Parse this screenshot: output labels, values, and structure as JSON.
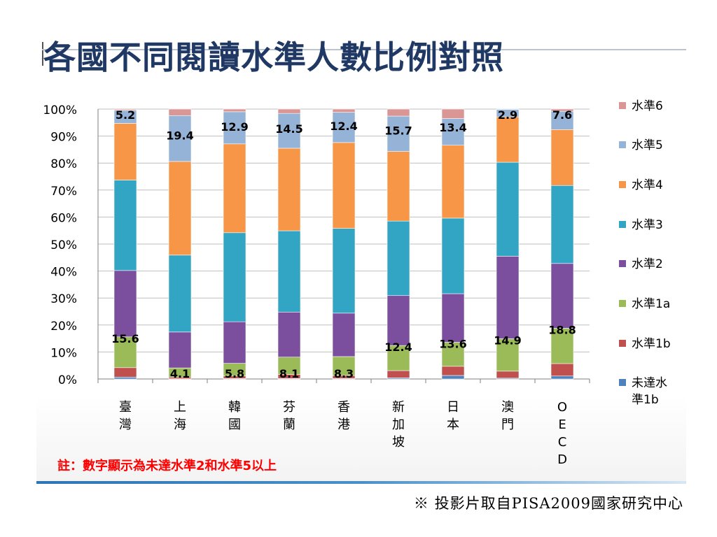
{
  "title": "各國不同閱讀水準人數比例對照",
  "note": "註：數字顯示為未達水準2和水準5以上",
  "source": "※ 投影片取自PISA2009國家研究中心",
  "colors": {
    "未達水準1b": "#4f81bd",
    "水準1b": "#c0504d",
    "水準1a": "#9bbb59",
    "水準2": "#7b4f9e",
    "水準3": "#31a5c3",
    "水準4": "#f79646",
    "水準5": "#95b3d7",
    "水準6": "#d99694"
  },
  "chart_data": {
    "type": "bar",
    "stacked": true,
    "ylim": [
      0,
      100
    ],
    "yticks": [
      "0%",
      "10%",
      "20%",
      "30%",
      "40%",
      "50%",
      "60%",
      "70%",
      "80%",
      "90%",
      "100%"
    ],
    "categories": [
      "臺灣",
      "上海",
      "韓國",
      "芬蘭",
      "香港",
      "新加坡",
      "日本",
      "澳門",
      "OECD"
    ],
    "series": [
      {
        "name": "未達水準1b",
        "values": [
          0.7,
          0.1,
          0.2,
          0.2,
          0.2,
          0.4,
          1.3,
          0.3,
          1.1
        ]
      },
      {
        "name": "水準1b",
        "values": [
          3.5,
          0.6,
          0.9,
          1.5,
          1.1,
          2.7,
          3.4,
          2.6,
          4.6
        ]
      },
      {
        "name": "水準1a",
        "values": [
          11.4,
          3.4,
          4.7,
          6.4,
          7.0,
          9.3,
          8.9,
          12.0,
          13.1
        ]
      },
      {
        "name": "水準2",
        "values": [
          24.6,
          13.3,
          15.4,
          16.7,
          16.1,
          18.5,
          18.0,
          30.6,
          24.0
        ]
      },
      {
        "name": "水準3",
        "values": [
          33.5,
          28.5,
          33.0,
          30.1,
          31.4,
          27.6,
          28.0,
          34.8,
          28.9
        ]
      },
      {
        "name": "水準4",
        "values": [
          21.0,
          34.7,
          32.9,
          30.6,
          31.8,
          25.8,
          27.0,
          16.8,
          20.7
        ]
      },
      {
        "name": "水準5",
        "values": [
          4.8,
          17.0,
          11.9,
          12.9,
          11.2,
          13.1,
          9.9,
          2.8,
          6.8
        ]
      },
      {
        "name": "水準6",
        "values": [
          0.4,
          2.4,
          1.0,
          1.6,
          1.2,
          2.6,
          3.5,
          0.1,
          0.8
        ]
      }
    ],
    "data_labels": {
      "low": [
        "15.6",
        "4.1",
        "5.8",
        "8.1",
        "8.3",
        "12.4",
        "13.6",
        "14.9",
        "18.8"
      ],
      "high": [
        "5.2",
        "19.4",
        "12.9",
        "14.5",
        "12.4",
        "15.7",
        "13.4",
        "2.9",
        "7.6"
      ]
    },
    "legend": [
      "水準6",
      "水準5",
      "水準4",
      "水準3",
      "水準2",
      "水準1a",
      "水準1b",
      "未達水準1b"
    ],
    "legend_position": "right",
    "grid": true
  }
}
